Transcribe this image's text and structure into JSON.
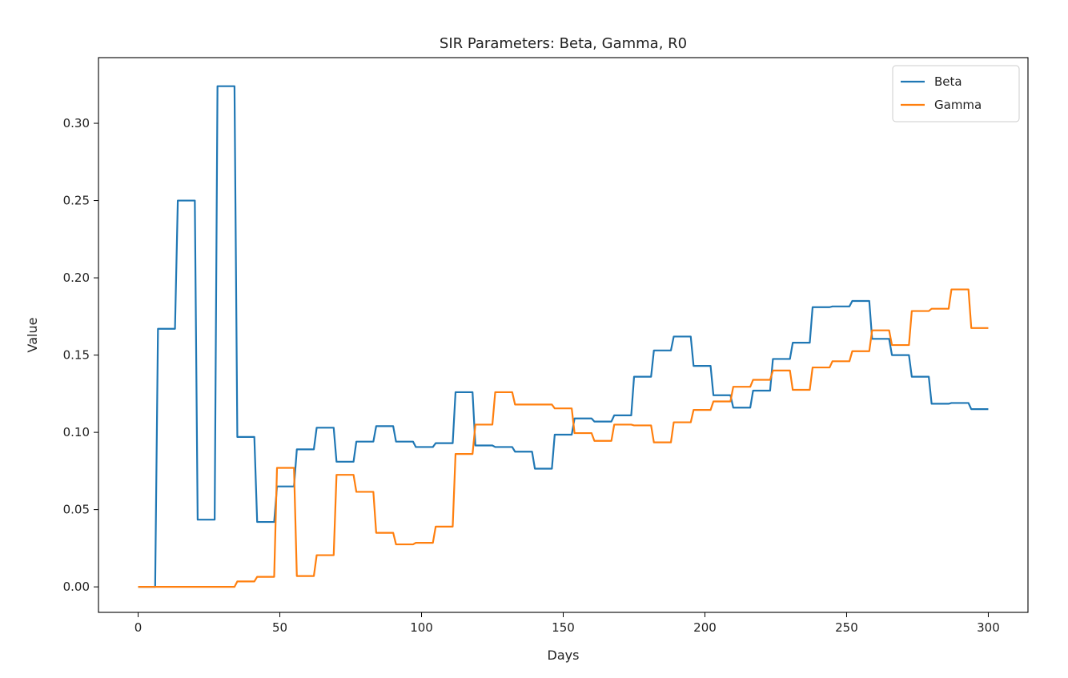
{
  "chart_data": {
    "type": "line",
    "title": "SIR Parameters: Beta, Gamma, R0",
    "xlabel": "Days",
    "ylabel": "Value",
    "xlim": [
      -14,
      314
    ],
    "ylim": [
      -0.0165,
      0.3425
    ],
    "xticks": [
      0,
      50,
      100,
      150,
      200,
      250,
      300
    ],
    "yticks": [
      0.0,
      0.05,
      0.1,
      0.15,
      0.2,
      0.25,
      0.3
    ],
    "ytick_labels": [
      "0.00",
      "0.05",
      "0.10",
      "0.15",
      "0.20",
      "0.25",
      "0.30"
    ],
    "legend_position": "top-right",
    "grid": false,
    "series": [
      {
        "name": "Beta",
        "color": "#1f77b4",
        "points": [
          [
            0,
            0
          ],
          [
            6,
            0
          ],
          [
            7,
            0.167
          ],
          [
            13,
            0.167
          ],
          [
            14,
            0.25
          ],
          [
            20,
            0.25
          ],
          [
            21,
            0.0435
          ],
          [
            27,
            0.0435
          ],
          [
            28,
            0.324
          ],
          [
            34,
            0.324
          ],
          [
            35,
            0.097
          ],
          [
            41,
            0.097
          ],
          [
            42,
            0.042
          ],
          [
            48,
            0.042
          ],
          [
            49,
            0.065
          ],
          [
            55,
            0.065
          ],
          [
            56,
            0.089
          ],
          [
            62,
            0.089
          ],
          [
            63,
            0.103
          ],
          [
            69,
            0.103
          ],
          [
            70,
            0.081
          ],
          [
            76,
            0.081
          ],
          [
            77,
            0.094
          ],
          [
            83,
            0.094
          ],
          [
            84,
            0.104
          ],
          [
            90,
            0.104
          ],
          [
            91,
            0.094
          ],
          [
            97,
            0.094
          ],
          [
            98,
            0.0905
          ],
          [
            104,
            0.0905
          ],
          [
            105,
            0.093
          ],
          [
            111,
            0.093
          ],
          [
            112,
            0.126
          ],
          [
            118,
            0.126
          ],
          [
            119,
            0.0915
          ],
          [
            125,
            0.0915
          ],
          [
            126,
            0.0905
          ],
          [
            132,
            0.0905
          ],
          [
            133,
            0.0875
          ],
          [
            139,
            0.0875
          ],
          [
            140,
            0.0765
          ],
          [
            146,
            0.0765
          ],
          [
            147,
            0.0985
          ],
          [
            153,
            0.0985
          ],
          [
            154,
            0.109
          ],
          [
            160,
            0.109
          ],
          [
            161,
            0.107
          ],
          [
            167,
            0.107
          ],
          [
            168,
            0.111
          ],
          [
            174,
            0.111
          ],
          [
            175,
            0.136
          ],
          [
            181,
            0.136
          ],
          [
            182,
            0.153
          ],
          [
            188,
            0.153
          ],
          [
            189,
            0.162
          ],
          [
            195,
            0.162
          ],
          [
            196,
            0.143
          ],
          [
            202,
            0.143
          ],
          [
            203,
            0.124
          ],
          [
            209,
            0.124
          ],
          [
            210,
            0.116
          ],
          [
            216,
            0.116
          ],
          [
            217,
            0.127
          ],
          [
            223,
            0.127
          ],
          [
            224,
            0.1475
          ],
          [
            230,
            0.1475
          ],
          [
            231,
            0.158
          ],
          [
            237,
            0.158
          ],
          [
            238,
            0.181
          ],
          [
            244,
            0.181
          ],
          [
            245,
            0.1815
          ],
          [
            251,
            0.1815
          ],
          [
            252,
            0.185
          ],
          [
            258,
            0.185
          ],
          [
            259,
            0.1605
          ],
          [
            265,
            0.1605
          ],
          [
            266,
            0.15
          ],
          [
            272,
            0.15
          ],
          [
            273,
            0.136
          ],
          [
            279,
            0.136
          ],
          [
            280,
            0.1185
          ],
          [
            286,
            0.1185
          ],
          [
            287,
            0.119
          ],
          [
            293,
            0.119
          ],
          [
            294,
            0.115
          ],
          [
            300,
            0.115
          ]
        ]
      },
      {
        "name": "Gamma",
        "color": "#ff7f0e",
        "points": [
          [
            0,
            0
          ],
          [
            34,
            0
          ],
          [
            35,
            0.0035
          ],
          [
            41,
            0.0035
          ],
          [
            42,
            0.0065
          ],
          [
            48,
            0.0065
          ],
          [
            49,
            0.077
          ],
          [
            55,
            0.077
          ],
          [
            56,
            0.007
          ],
          [
            62,
            0.007
          ],
          [
            63,
            0.0205
          ],
          [
            69,
            0.0205
          ],
          [
            70,
            0.0725
          ],
          [
            76,
            0.0725
          ],
          [
            77,
            0.0615
          ],
          [
            83,
            0.0615
          ],
          [
            84,
            0.035
          ],
          [
            90,
            0.035
          ],
          [
            91,
            0.0275
          ],
          [
            97,
            0.0275
          ],
          [
            98,
            0.0285
          ],
          [
            104,
            0.0285
          ],
          [
            105,
            0.039
          ],
          [
            111,
            0.039
          ],
          [
            112,
            0.086
          ],
          [
            118,
            0.086
          ],
          [
            119,
            0.105
          ],
          [
            125,
            0.105
          ],
          [
            126,
            0.126
          ],
          [
            132,
            0.126
          ],
          [
            133,
            0.118
          ],
          [
            146,
            0.118
          ],
          [
            147,
            0.1155
          ],
          [
            153,
            0.1155
          ],
          [
            154,
            0.0995
          ],
          [
            160,
            0.0995
          ],
          [
            161,
            0.0945
          ],
          [
            167,
            0.0945
          ],
          [
            168,
            0.105
          ],
          [
            174,
            0.105
          ],
          [
            175,
            0.1045
          ],
          [
            181,
            0.1045
          ],
          [
            182,
            0.0935
          ],
          [
            188,
            0.0935
          ],
          [
            189,
            0.1065
          ],
          [
            195,
            0.1065
          ],
          [
            196,
            0.1145
          ],
          [
            202,
            0.1145
          ],
          [
            203,
            0.12
          ],
          [
            209,
            0.12
          ],
          [
            210,
            0.1295
          ],
          [
            216,
            0.1295
          ],
          [
            217,
            0.134
          ],
          [
            223,
            0.134
          ],
          [
            224,
            0.14
          ],
          [
            230,
            0.14
          ],
          [
            231,
            0.1275
          ],
          [
            237,
            0.1275
          ],
          [
            238,
            0.142
          ],
          [
            244,
            0.142
          ],
          [
            245,
            0.146
          ],
          [
            251,
            0.146
          ],
          [
            252,
            0.1525
          ],
          [
            258,
            0.1525
          ],
          [
            259,
            0.166
          ],
          [
            265,
            0.166
          ],
          [
            266,
            0.1565
          ],
          [
            272,
            0.1565
          ],
          [
            273,
            0.1785
          ],
          [
            279,
            0.1785
          ],
          [
            280,
            0.18
          ],
          [
            286,
            0.18
          ],
          [
            287,
            0.1925
          ],
          [
            293,
            0.1925
          ],
          [
            294,
            0.1675
          ],
          [
            300,
            0.1675
          ]
        ]
      }
    ]
  }
}
